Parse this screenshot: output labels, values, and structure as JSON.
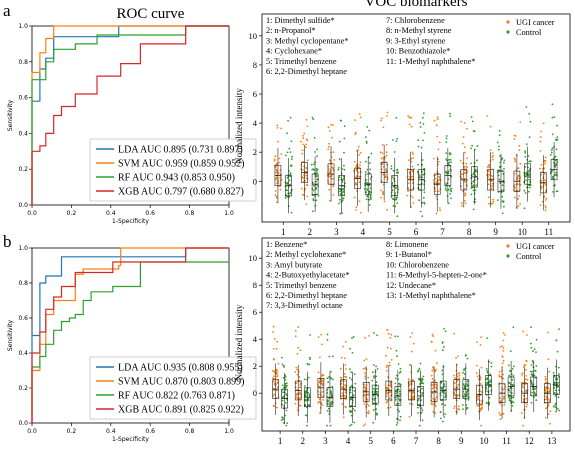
{
  "colors": {
    "lda": "#1f77b4",
    "svm": "#ff7f0e",
    "rf": "#2ca02c",
    "xgb": "#d62728",
    "ugi": "#ff7f0e",
    "control": "#2ca02c"
  },
  "chart_data": [
    {
      "panel": "a",
      "type": "line",
      "title": "ROC curve",
      "xlabel": "1-Specificity",
      "ylabel": "Sensitivity",
      "xlim": [
        0,
        1
      ],
      "ylim": [
        0,
        1
      ],
      "xticks": [
        "0.0",
        "0.2",
        "0.4",
        "0.6",
        "0.8",
        "1.0"
      ],
      "yticks": [
        "0.0",
        "0.2",
        "0.4",
        "0.6",
        "0.8",
        "1.0"
      ],
      "legend_position": "lower-right",
      "series": [
        {
          "key": "lda",
          "name": "LDA AUC 0.895 (0.731 0.897)",
          "x": [
            0,
            0,
            0.04,
            0.04,
            0.07,
            0.07,
            0.11,
            0.11,
            0.44,
            0.44,
            1
          ],
          "y": [
            0,
            0.58,
            0.58,
            0.76,
            0.76,
            0.82,
            0.82,
            0.94,
            0.94,
            1,
            1
          ]
        },
        {
          "key": "svm",
          "name": "SVM AUC 0.959 (0.859 0.952)",
          "x": [
            0,
            0,
            0.04,
            0.04,
            0.07,
            0.07,
            0.11,
            0.11,
            1
          ],
          "y": [
            0,
            0.74,
            0.74,
            0.85,
            0.85,
            0.93,
            0.93,
            1,
            1
          ]
        },
        {
          "key": "rf",
          "name": "RF   AUC 0.943 (0.853 0.950)",
          "x": [
            0,
            0,
            0.07,
            0.07,
            0.11,
            0.11,
            0.22,
            0.22,
            0.33,
            0.33,
            0.78,
            0.78,
            1
          ],
          "y": [
            0,
            0.7,
            0.7,
            0.8,
            0.8,
            0.87,
            0.87,
            0.9,
            0.9,
            0.95,
            0.95,
            1,
            1
          ]
        },
        {
          "key": "xgb",
          "name": "XGB AUC 0.797 (0.680 0.827)",
          "x": [
            0,
            0,
            0.04,
            0.04,
            0.07,
            0.07,
            0.11,
            0.11,
            0.15,
            0.15,
            0.22,
            0.22,
            0.33,
            0.33,
            0.45,
            0.45,
            0.55,
            0.55,
            0.78,
            0.78,
            1
          ],
          "y": [
            0,
            0.3,
            0.3,
            0.33,
            0.33,
            0.4,
            0.4,
            0.5,
            0.5,
            0.55,
            0.55,
            0.62,
            0.62,
            0.72,
            0.72,
            0.79,
            0.79,
            0.9,
            0.9,
            1,
            1
          ]
        }
      ]
    },
    {
      "panel": "a",
      "type": "scatter",
      "title": "VOC biomarkers",
      "ylabel": "Normalized intensity",
      "ylim": [
        -2.8,
        11.5
      ],
      "yticks": [
        0,
        2,
        4,
        6,
        8,
        10
      ],
      "categories": [
        "1",
        "2",
        "3",
        "4",
        "5",
        "6",
        "7",
        "8",
        "9",
        "10",
        "11"
      ],
      "legend": [
        "UGI cancer",
        "Control"
      ],
      "compound_list": [
        "1: Dimethyl sulfide*",
        "2: n-Propanol*",
        "3: Methyl cyclopentane*",
        "4: Cyclohexane*",
        "5: Trimethyl benzene",
        "6: 2,2-Dimethyl heptane",
        "7: Chlorobenzene",
        "8: n-Methyl styrene",
        "9: 3-Ethyl styrene",
        "10: Benzothiazole*",
        "11: 1-Methyl naphthalene*"
      ],
      "ugi_medians": [
        0.4,
        0.6,
        0.5,
        0.2,
        0.6,
        0.1,
        -0.2,
        0.1,
        0.1,
        0.0,
        -0.1
      ],
      "control_medians": [
        -0.3,
        -0.2,
        -0.3,
        -0.2,
        -0.3,
        0.1,
        0.4,
        0.3,
        0.0,
        0.5,
        0.8
      ]
    },
    {
      "panel": "b",
      "type": "line",
      "title": "",
      "xlabel": "1-Specificity",
      "ylabel": "Sensitivity",
      "xlim": [
        0,
        1
      ],
      "ylim": [
        0,
        1
      ],
      "xticks": [
        "0.0",
        "0.2",
        "0.4",
        "0.6",
        "0.8",
        "1.0"
      ],
      "yticks": [
        "0.0",
        "0.2",
        "0.4",
        "0.6",
        "0.8",
        "1.0"
      ],
      "legend_position": "lower-right",
      "series": [
        {
          "key": "lda",
          "name": "LDA AUC 0.935 (0.808 0.955)",
          "x": [
            0,
            0,
            0.04,
            0.04,
            0.07,
            0.07,
            0.15,
            0.15,
            0.78,
            0.78,
            1
          ],
          "y": [
            0,
            0.5,
            0.5,
            0.8,
            0.8,
            0.84,
            0.84,
            0.95,
            0.95,
            1,
            1
          ]
        },
        {
          "key": "svm",
          "name": "SVM AUC 0.870 (0.803 0.899)",
          "x": [
            0,
            0,
            0.04,
            0.04,
            0.07,
            0.07,
            0.11,
            0.11,
            0.22,
            0.22,
            0.26,
            0.26,
            0.44,
            0.44,
            0.45,
            0.45,
            1
          ],
          "y": [
            0,
            0.3,
            0.3,
            0.45,
            0.45,
            0.62,
            0.62,
            0.7,
            0.7,
            0.85,
            0.85,
            0.88,
            0.88,
            0.9,
            0.9,
            1,
            1
          ]
        },
        {
          "key": "rf",
          "name": "RF   AUC 0.822 (0.763 0.871)",
          "x": [
            0,
            0,
            0.04,
            0.04,
            0.07,
            0.07,
            0.11,
            0.11,
            0.15,
            0.15,
            0.19,
            0.19,
            0.22,
            0.22,
            0.26,
            0.26,
            0.3,
            0.3,
            0.41,
            0.41,
            0.55,
            0.55,
            1
          ],
          "y": [
            0,
            0.32,
            0.32,
            0.38,
            0.38,
            0.45,
            0.45,
            0.53,
            0.53,
            0.58,
            0.58,
            0.6,
            0.6,
            0.62,
            0.62,
            0.7,
            0.7,
            0.75,
            0.75,
            0.78,
            0.78,
            0.92,
            0.92
          ]
        },
        {
          "key": "xgb",
          "name": "XGB AUC 0.891 (0.825 0.922)",
          "x": [
            0,
            0,
            0.04,
            0.04,
            0.07,
            0.07,
            0.11,
            0.11,
            0.15,
            0.15,
            0.22,
            0.22,
            0.41,
            0.41,
            0.78,
            0.78,
            1
          ],
          "y": [
            0,
            0.4,
            0.4,
            0.52,
            0.52,
            0.65,
            0.65,
            0.72,
            0.72,
            0.78,
            0.78,
            0.86,
            0.86,
            0.92,
            0.92,
            1,
            1
          ]
        }
      ]
    },
    {
      "panel": "b",
      "type": "scatter",
      "title": "",
      "ylabel": "Normalized intensity",
      "ylim": [
        -2.8,
        11.5
      ],
      "yticks": [
        0,
        2,
        4,
        6,
        8,
        10
      ],
      "categories": [
        "1",
        "2",
        "3",
        "4",
        "5",
        "6",
        "7",
        "8",
        "9",
        "10",
        "11",
        "12",
        "13"
      ],
      "legend": [
        "UGI cancer",
        "Control"
      ],
      "compound_list": [
        "1: Benzene*",
        "2: Methyl cyclohexane*",
        "3: Amyl butyrate",
        "4: 2-Butoxyethylacetate*",
        "5: Trimethyl benzene",
        "6: 2,2-Dimethyl heptane",
        "7: 3,3-Dimethyl octane",
        "8: Limonene",
        "9: 1-Butanol*",
        "10: Chlorobenzene",
        "11: 6-Methyl-5-hepten-2-one*",
        "12: Undecane*",
        "13: 1-Methyl naphthalene*"
      ],
      "ugi_medians": [
        0.3,
        0.2,
        0.4,
        0.3,
        0.1,
        0.2,
        0.2,
        0.1,
        0.3,
        -0.1,
        0.0,
        0.0,
        0.0
      ],
      "control_medians": [
        -0.4,
        -0.3,
        -0.3,
        -0.3,
        -0.1,
        -0.2,
        -0.2,
        0.2,
        0.3,
        0.6,
        0.5,
        0.5,
        0.6
      ]
    }
  ],
  "panel_labels": [
    "a",
    "b"
  ]
}
